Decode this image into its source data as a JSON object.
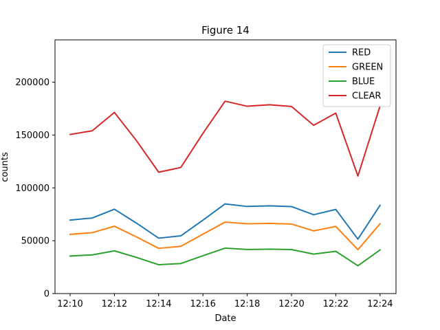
{
  "chart_data": {
    "type": "line",
    "title": "Figure 14",
    "xlabel": "Date",
    "ylabel": "counts",
    "x": [
      "12:10",
      "12:11",
      "12:12",
      "12:13",
      "12:14",
      "12:15",
      "12:16",
      "12:17",
      "12:18",
      "12:19",
      "12:20",
      "12:21",
      "12:22",
      "12:23",
      "12:24"
    ],
    "xticks": [
      "12:10",
      "12:12",
      "12:14",
      "12:16",
      "12:18",
      "12:20",
      "12:22",
      "12:24"
    ],
    "ylim": [
      0,
      240000
    ],
    "yticks": [
      0,
      50000,
      100000,
      150000,
      200000
    ],
    "grid": false,
    "legend_position": "top-right",
    "series": [
      {
        "name": "RED",
        "color": "#1f77b4",
        "values": [
          69500,
          71500,
          79800,
          66600,
          52400,
          54600,
          69500,
          84800,
          82400,
          83000,
          82300,
          74600,
          79600,
          51500,
          83500
        ]
      },
      {
        "name": "GREEN",
        "color": "#ff7f0e",
        "values": [
          56000,
          57600,
          63700,
          53600,
          42800,
          44700,
          56200,
          67600,
          66000,
          66400,
          65800,
          59300,
          63500,
          41500,
          66000
        ]
      },
      {
        "name": "BLUE",
        "color": "#2ca02c",
        "values": [
          35500,
          36600,
          40400,
          34200,
          27300,
          28400,
          35800,
          43000,
          41700,
          42000,
          41600,
          37300,
          40000,
          26300,
          41300
        ]
      },
      {
        "name": "CLEAR",
        "color": "#d62728",
        "values": [
          150500,
          154000,
          171400,
          144600,
          114800,
          119300,
          151600,
          182000,
          177200,
          178600,
          177000,
          159200,
          170700,
          111200,
          177500
        ]
      }
    ]
  }
}
